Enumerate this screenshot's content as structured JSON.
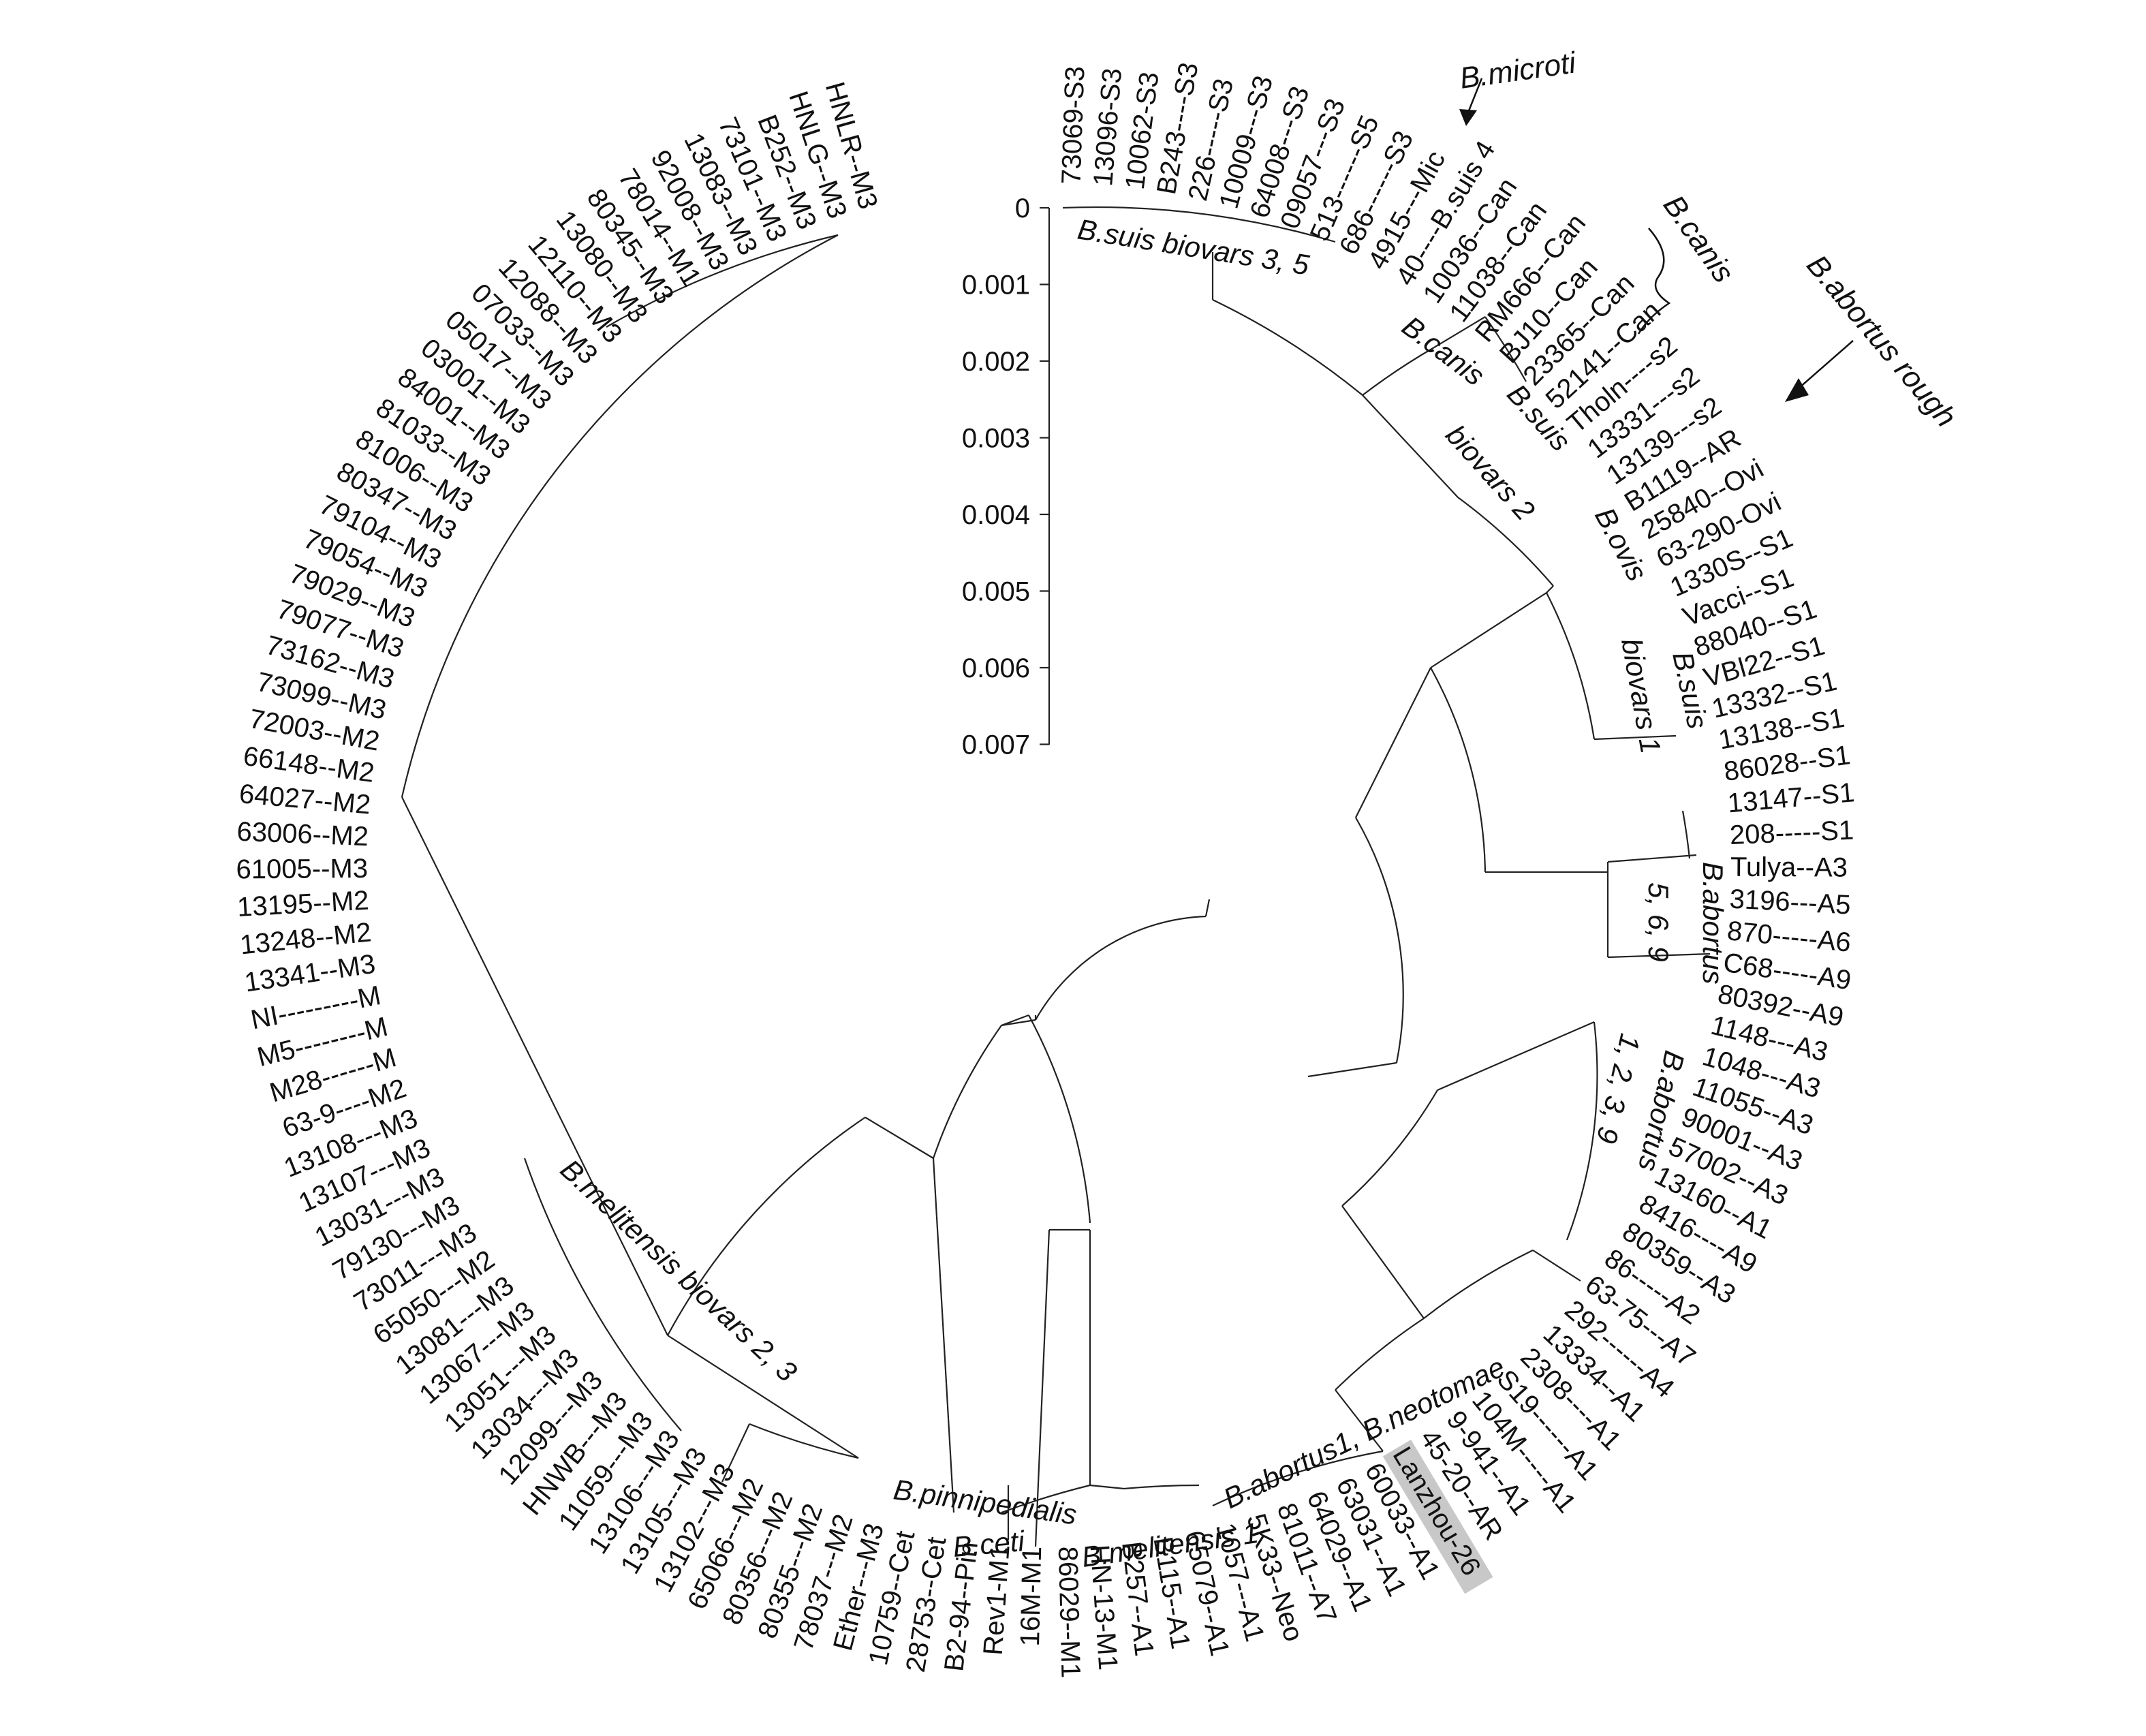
{
  "scale_axis": {
    "ticks": [
      "0",
      "0.001",
      "0.002",
      "0.003",
      "0.004",
      "0.005",
      "0.006",
      "0.007"
    ]
  },
  "leaves": [
    "73069-S3",
    "13096-S3",
    "10062-S3",
    "B243----S3",
    "226-----S3",
    "10009---S3",
    "64008---S3",
    "09057---S3",
    "513------S5",
    "686------S3",
    "4915---Mic",
    "40----B.suis 4",
    "10036--Can",
    "11038--Can",
    "RM666--Can",
    "BJ10--Can",
    "23365--Can",
    "52141--Can",
    "Tholn----s2",
    "13331---s2",
    "13139---s2",
    "B1119--AR",
    "25840--Ovi",
    "63-290-Ovi",
    "1330S--S1",
    "Vacci--S1",
    "88040--S1",
    "VBl22--S1",
    "13332--S1",
    "13138--S1",
    "86028--S1",
    "13147--S1",
    "208-----S1",
    "Tulya--A3",
    "3196---A5",
    "870-----A6",
    "C68-----A9",
    "80392--A9",
    "1148---A3",
    "1048---A3",
    "11055--A3",
    "90001--A3",
    "57002--A3",
    "13160--A1",
    "8416----A9",
    "80359--A3",
    "86-----A2",
    "63-75---A7",
    "292------A4",
    "13334--A1",
    "2308----A1",
    "S19------A1",
    "104M-----A1",
    "9-941--A1",
    "45-20--AR",
    "Lanzhou-26",
    "60033--A1",
    "63031--A1",
    "64029--A1",
    "81011--A7",
    "5K33--Neo",
    "1057---A1",
    "65079--A1",
    "B115--A1",
    "B257--A1",
    "HN-13-M1",
    "86029--M1",
    "16M-M1",
    "Rev1-M1",
    "B2-94--Pin",
    "28753--Cet",
    "10759--Cet",
    "Ether---M3",
    "78037---M2",
    "80355---M2",
    "80356---M2",
    "65066---M2",
    "13102---M3",
    "13105---M3",
    "13106---M3",
    "11059---M3",
    "HNWB---M3",
    "12099---M3",
    "13034---M3",
    "13051---M3",
    "13067---M3",
    "13081---M3",
    "65050---M2",
    "73011---M3",
    "79130---M3",
    "13031---M3",
    "13107---M3",
    "13108---M3",
    "63-9----M2",
    "M28------M",
    "M5--------M",
    "NI---------M",
    "13341--M3",
    "13248--M2",
    "13195--M2",
    "61005--M3",
    "63006--M2",
    "64027--M2",
    "66148--M2",
    "72003--M2",
    "73099--M3",
    "73162--M3",
    "79077--M3",
    "79029--M3",
    "79054--M3",
    "79104--M3",
    "80347--M3",
    "81006--M3",
    "81033--M3",
    "84001--M3",
    "03001--M3",
    "05017--M3",
    "07033--M3",
    "12088--M3",
    "12110--M3",
    "13080--M3",
    "80345--M3",
    "78014--M1",
    "92008--M3",
    "13083--M3",
    "73101--M3",
    "B252--M3",
    "HNLG--M3",
    "HNLR--M3"
  ],
  "highlighted_leaf": "Lanzhou-26",
  "clade_labels": {
    "suis_35": "B.suis biovars 3, 5",
    "canis_inner": "B.canis",
    "suis2_a": "B.suis",
    "suis2_b": "biovars 2",
    "ovis": "B.ovis",
    "suis1_a": "B.suis",
    "suis1_b": "biovars 1",
    "abortus569_a": "B.abortus",
    "abortus569_b": "5, 6, 9",
    "abortus1239_a": "B.abortus",
    "abortus1239_b": "1, 2, 3, 9",
    "abortus1_neotomae": "B.abortus1, B.neotomae",
    "melitensis1": "B.melitensis 1",
    "ceti": "B.ceti",
    "pinnipedialis": "B.pinnipedialis",
    "melitensis23": "B.melitensis biovars 2, 3"
  },
  "annotations": {
    "microti": "B.microti",
    "canis_outer": "B.canis",
    "abortus_rough": "B.abortus rough"
  }
}
